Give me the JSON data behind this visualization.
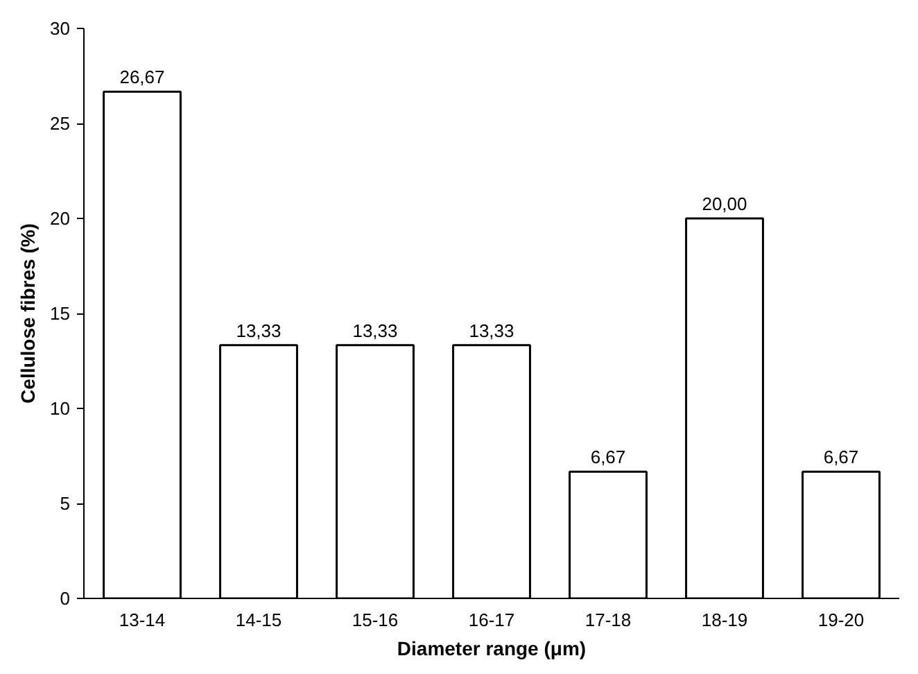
{
  "chart_data": {
    "type": "bar",
    "xlabel": "Diameter range (μm)",
    "ylabel": "Cellulose fibres (%)",
    "categories": [
      "13-14",
      "14-15",
      "15-16",
      "16-17",
      "17-18",
      "18-19",
      "19-20"
    ],
    "values": [
      26.67,
      13.33,
      13.33,
      13.33,
      6.67,
      20.0,
      6.67
    ],
    "value_labels": [
      "26,67",
      "13,33",
      "13,33",
      "13,33",
      "6,67",
      "20,00",
      "6,67"
    ],
    "color": "#ffffff",
    "ylim": [
      0,
      30
    ],
    "yticks": [
      0,
      5,
      10,
      15,
      20,
      25,
      30
    ],
    "grid": false
  }
}
